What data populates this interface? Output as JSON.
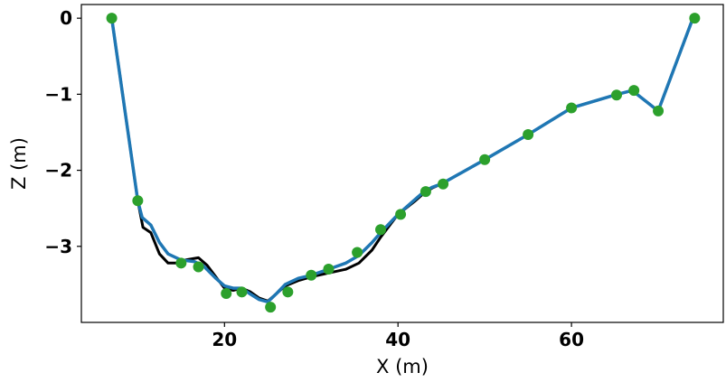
{
  "chart_data": {
    "type": "line",
    "title": "",
    "xlabel": "X (m)",
    "ylabel": "Z (m)",
    "xlim": [
      3.5,
      77.5
    ],
    "ylim": [
      -4.0,
      0.18
    ],
    "xticks": [
      20,
      40,
      60
    ],
    "yticks": [
      0,
      -1,
      -2,
      -3
    ],
    "xtick_labels": [
      "20",
      "40",
      "60"
    ],
    "ytick_labels": [
      "0",
      "−1",
      "−2",
      "−3"
    ],
    "grid": false,
    "legend": "none",
    "series": [
      {
        "kind": "line",
        "color": "#000000",
        "points": [
          [
            7,
            0
          ],
          [
            10,
            -2.4
          ],
          [
            10.6,
            -2.75
          ],
          [
            11.5,
            -2.82
          ],
          [
            12.5,
            -3.1
          ],
          [
            13.5,
            -3.22
          ],
          [
            14.5,
            -3.22
          ],
          [
            15.5,
            -3.18
          ],
          [
            17,
            -3.15
          ],
          [
            18,
            -3.25
          ],
          [
            19,
            -3.4
          ],
          [
            20,
            -3.55
          ],
          [
            21,
            -3.58
          ],
          [
            22,
            -3.55
          ],
          [
            23,
            -3.6
          ],
          [
            24,
            -3.68
          ],
          [
            25,
            -3.72
          ],
          [
            26,
            -3.62
          ],
          [
            27,
            -3.52
          ],
          [
            28.5,
            -3.45
          ],
          [
            30,
            -3.4
          ],
          [
            32,
            -3.35
          ],
          [
            34,
            -3.3
          ],
          [
            35.5,
            -3.22
          ],
          [
            37,
            -3.05
          ],
          [
            38,
            -2.88
          ],
          [
            40,
            -2.58
          ],
          [
            42,
            -2.4
          ],
          [
            43,
            -2.3
          ],
          [
            44,
            -2.23
          ],
          [
            45,
            -2.18
          ],
          [
            50,
            -1.86
          ],
          [
            55,
            -1.53
          ],
          [
            60,
            -1.18
          ],
          [
            65,
            -1.01
          ],
          [
            67,
            -0.95
          ],
          [
            70,
            -1.22
          ],
          [
            74,
            0
          ]
        ]
      },
      {
        "kind": "line",
        "color": "#1f77b4",
        "points": [
          [
            7,
            0
          ],
          [
            10,
            -2.4
          ],
          [
            10.5,
            -2.62
          ],
          [
            11.5,
            -2.72
          ],
          [
            12.5,
            -2.95
          ],
          [
            13.5,
            -3.1
          ],
          [
            15,
            -3.18
          ],
          [
            16.5,
            -3.2
          ],
          [
            17.5,
            -3.25
          ],
          [
            19,
            -3.42
          ],
          [
            20,
            -3.52
          ],
          [
            21,
            -3.55
          ],
          [
            22,
            -3.55
          ],
          [
            23,
            -3.63
          ],
          [
            24,
            -3.7
          ],
          [
            25,
            -3.73
          ],
          [
            26,
            -3.62
          ],
          [
            27,
            -3.5
          ],
          [
            28.5,
            -3.42
          ],
          [
            30,
            -3.38
          ],
          [
            32,
            -3.3
          ],
          [
            34,
            -3.22
          ],
          [
            35.5,
            -3.12
          ],
          [
            37,
            -2.95
          ],
          [
            38,
            -2.82
          ],
          [
            40,
            -2.58
          ],
          [
            42,
            -2.38
          ],
          [
            43,
            -2.28
          ],
          [
            44,
            -2.22
          ],
          [
            45,
            -2.18
          ],
          [
            50,
            -1.86
          ],
          [
            55,
            -1.53
          ],
          [
            60,
            -1.18
          ],
          [
            65,
            -1.01
          ],
          [
            67,
            -0.95
          ],
          [
            70,
            -1.22
          ],
          [
            74,
            0
          ]
        ]
      },
      {
        "kind": "scatter",
        "color": "#2ca02c",
        "points": [
          [
            7,
            0
          ],
          [
            10,
            -2.4
          ],
          [
            15,
            -3.22
          ],
          [
            17,
            -3.27
          ],
          [
            20.2,
            -3.62
          ],
          [
            22,
            -3.6
          ],
          [
            25.3,
            -3.8
          ],
          [
            27.3,
            -3.6
          ],
          [
            30,
            -3.38
          ],
          [
            32,
            -3.3
          ],
          [
            35.3,
            -3.08
          ],
          [
            38,
            -2.78
          ],
          [
            40.3,
            -2.58
          ],
          [
            43.2,
            -2.28
          ],
          [
            45.2,
            -2.18
          ],
          [
            50,
            -1.86
          ],
          [
            55,
            -1.53
          ],
          [
            60,
            -1.18
          ],
          [
            65.2,
            -1.01
          ],
          [
            67.2,
            -0.95
          ],
          [
            70,
            -1.22
          ],
          [
            74.2,
            0
          ]
        ]
      }
    ]
  }
}
